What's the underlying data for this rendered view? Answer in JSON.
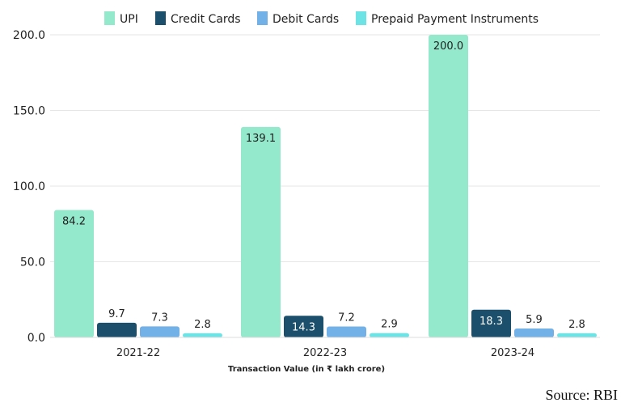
{
  "chart_data": {
    "type": "bar",
    "categories": [
      "2021-22",
      "2022-23",
      "2023-24"
    ],
    "series": [
      {
        "name": "UPI",
        "values": [
          84.2,
          139.1,
          200.0
        ],
        "color": "#94E8CB"
      },
      {
        "name": "Credit Cards",
        "values": [
          9.7,
          14.3,
          18.3
        ],
        "color": "#1B4F6B"
      },
      {
        "name": "Debit Cards",
        "values": [
          7.3,
          7.2,
          5.9
        ],
        "color": "#72B0E8"
      },
      {
        "name": "Prepaid Payment Instruments",
        "values": [
          2.8,
          2.9,
          2.8
        ],
        "color": "#6EE3E6"
      }
    ],
    "title": "",
    "xlabel": "Transaction Value (in ₹ lakh crore)",
    "ylabel": "",
    "ylim": [
      0,
      200
    ],
    "yticks": [
      "0.0",
      "50.0",
      "100.0",
      "150.0",
      "200.0"
    ],
    "grid": true,
    "legend": "top"
  },
  "source": "Source: RBI"
}
